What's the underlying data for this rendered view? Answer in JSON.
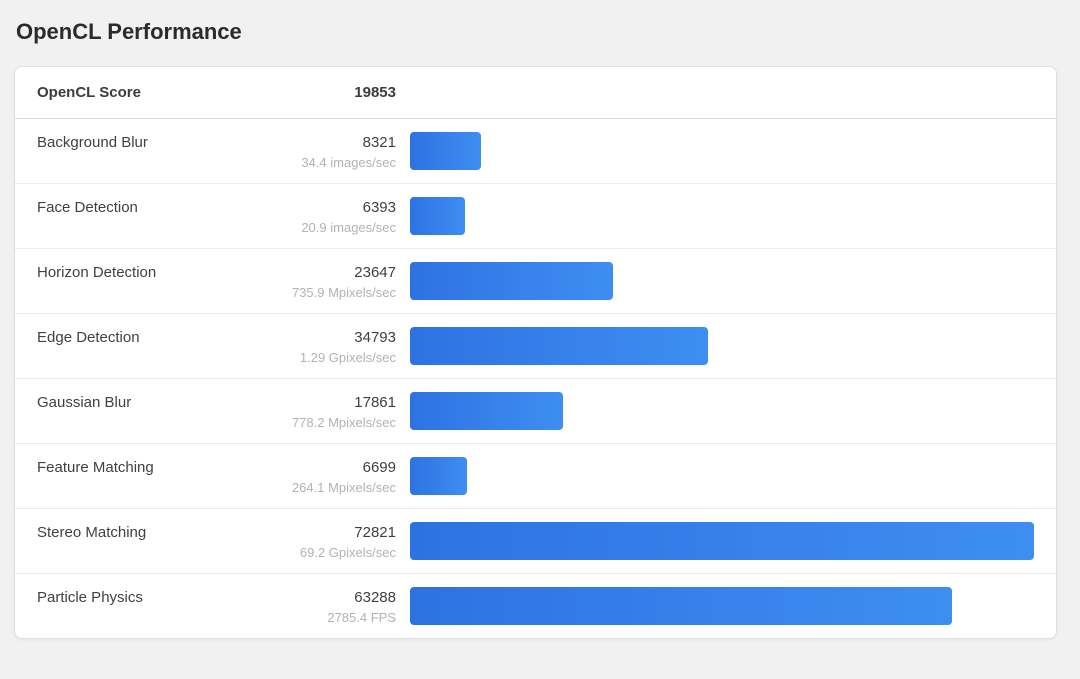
{
  "page": {
    "title": "OpenCL Performance",
    "background_color": "#f1f1f2"
  },
  "score_card": {
    "header": {
      "label": "OpenCL Score",
      "score": "19853"
    },
    "max_value": 72821,
    "bar_colors": {
      "start": "#2e72e2",
      "end": "#3e8ef2"
    },
    "rows": [
      {
        "label": "Background Blur",
        "score": "8321",
        "rate": "34.4 images/sec",
        "value": 8321
      },
      {
        "label": "Face Detection",
        "score": "6393",
        "rate": "20.9 images/sec",
        "value": 6393
      },
      {
        "label": "Horizon Detection",
        "score": "23647",
        "rate": "735.9 Mpixels/sec",
        "value": 23647
      },
      {
        "label": "Edge Detection",
        "score": "34793",
        "rate": "1.29 Gpixels/sec",
        "value": 34793
      },
      {
        "label": "Gaussian Blur",
        "score": "17861",
        "rate": "778.2 Mpixels/sec",
        "value": 17861
      },
      {
        "label": "Feature Matching",
        "score": "6699",
        "rate": "264.1 Mpixels/sec",
        "value": 6699
      },
      {
        "label": "Stereo Matching",
        "score": "72821",
        "rate": "69.2 Gpixels/sec",
        "value": 72821
      },
      {
        "label": "Particle Physics",
        "score": "63288",
        "rate": "2785.4 FPS",
        "value": 63288
      }
    ]
  },
  "chart_data": {
    "type": "bar",
    "orientation": "horizontal",
    "title": "OpenCL Performance",
    "overall_score": {
      "label": "OpenCL Score",
      "value": 19853
    },
    "categories": [
      "Background Blur",
      "Face Detection",
      "Horizon Detection",
      "Edge Detection",
      "Gaussian Blur",
      "Feature Matching",
      "Stereo Matching",
      "Particle Physics"
    ],
    "values": [
      8321,
      6393,
      23647,
      34793,
      17861,
      6699,
      72821,
      63288
    ],
    "rate_labels": [
      "34.4 images/sec",
      "20.9 images/sec",
      "735.9 Mpixels/sec",
      "1.29 Gpixels/sec",
      "778.2 Mpixels/sec",
      "264.1 Mpixels/sec",
      "69.2 Gpixels/sec",
      "2785.4 FPS"
    ],
    "xlim": [
      0,
      72821
    ],
    "grid": false,
    "legend": false,
    "bar_color_gradient": [
      "#2e72e2",
      "#3e8ef2"
    ]
  }
}
